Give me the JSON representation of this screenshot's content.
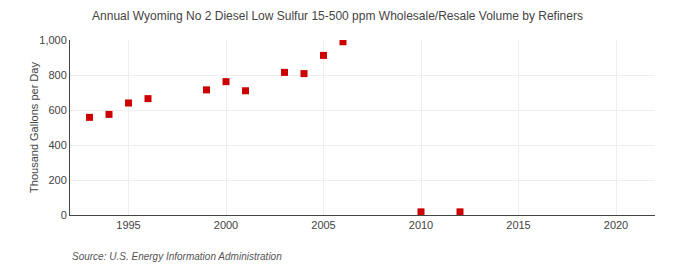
{
  "chart_data": {
    "type": "scatter",
    "title": "Annual Wyoming No 2 Diesel Low Sulfur 15-500 ppm Wholesale/Resale Volume by Refiners",
    "ylabel": "Thousand Gallons per Day",
    "annotations": [
      "Source: U.S. Energy Information Administration"
    ],
    "x": [
      1993,
      1994,
      1995,
      1996,
      1999,
      2000,
      2001,
      2003,
      2004,
      2005,
      2006,
      2010,
      2012
    ],
    "values": [
      558,
      575,
      640,
      665,
      715,
      762,
      710,
      815,
      808,
      912,
      990,
      18,
      18
    ],
    "color": "#cc0000",
    "marker": "square",
    "xlim": [
      1992,
      2022
    ],
    "ylim": [
      0,
      1000
    ],
    "xticks": [
      1995,
      2000,
      2005,
      2010,
      2015,
      2020
    ],
    "yticks": [
      0,
      200,
      400,
      600,
      800,
      {
        "value": 1000,
        "label": "1,000"
      }
    ],
    "grid": true
  }
}
